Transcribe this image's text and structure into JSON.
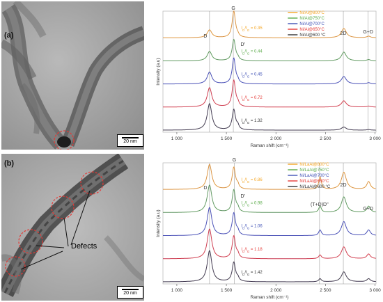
{
  "panels": {
    "a": {
      "letter": "(a)",
      "scale_label": "20 nm"
    },
    "b": {
      "letter": "(b)",
      "scale_label": "20 nm",
      "annotation": "Defects"
    }
  },
  "chart_data": [
    {
      "type": "line",
      "xlabel": "Raman shift (cm⁻¹)",
      "ylabel": "Intensity (a.u)",
      "xlim": [
        860,
        3010
      ],
      "xticks": [
        1000,
        1500,
        2000,
        2500,
        3000
      ],
      "xtick_labels": [
        "1 000",
        "1 500",
        "2 000",
        "2 500",
        "3 000"
      ],
      "peaks": [
        {
          "label": "D",
          "x": 1330
        },
        {
          "label": "G",
          "x": 1570
        },
        {
          "label": "D'",
          "x": 1610
        },
        {
          "label": "2D",
          "x": 2680
        },
        {
          "label": "G+D",
          "x": 2930
        }
      ],
      "vlines": [
        1330,
        1570,
        2680,
        2930
      ],
      "legend": [
        {
          "name": "Ni/Al@800°C",
          "color": "#f5a623"
        },
        {
          "name": "Ni/Al@750°C",
          "color": "#5bab4a"
        },
        {
          "name": "Ni/Al@700°C",
          "color": "#3f51b5"
        },
        {
          "name": "Ni/Al@650°C",
          "color": "#e53935"
        },
        {
          "name": "Ni/Al@600 °C",
          "color": "#333333"
        }
      ],
      "series": [
        {
          "color": "#f5a623",
          "ratio_label": "I_D/I_G = 0.35",
          "ratio": "0.35",
          "D": 0.25,
          "G": 0.85,
          "D2": 0.05,
          "twoD": 0.3,
          "GD": 0.05,
          "TD": 0
        },
        {
          "color": "#5bab4a",
          "ratio_label": "I_D/I_G = 0.44",
          "ratio": "0.44",
          "D": 0.3,
          "G": 0.68,
          "D2": 0.07,
          "twoD": 0.28,
          "GD": 0.04,
          "TD": 0
        },
        {
          "color": "#3f51b5",
          "ratio_label": "I_D/I_G = 0.45",
          "ratio": "0.45",
          "D": 0.38,
          "G": 0.82,
          "D2": 0.08,
          "twoD": 0.24,
          "GD": 0.04,
          "TD": 0
        },
        {
          "color": "#e53935",
          "ratio_label": "I_D/I_G = 0.72",
          "ratio": "0.72",
          "D": 0.62,
          "G": 0.85,
          "D2": 0.1,
          "twoD": 0.2,
          "GD": 0.03,
          "TD": 0
        },
        {
          "color": "#333333",
          "ratio_label": "I_D/I_G = 1.32",
          "ratio": "1.32",
          "D": 0.85,
          "G": 0.65,
          "D2": 0.12,
          "twoD": 0.1,
          "GD": 0.02,
          "TD": 0
        }
      ]
    },
    {
      "type": "line",
      "xlabel": "Raman shift (cm⁻¹)",
      "ylabel": "Intensity (a.u)",
      "xlim": [
        860,
        3010
      ],
      "xticks": [
        1000,
        1500,
        2000,
        2500,
        3000
      ],
      "xtick_labels": [
        "1 000",
        "1 500",
        "2 000",
        "2 500",
        "3 000"
      ],
      "peaks": [
        {
          "label": "D",
          "x": 1330
        },
        {
          "label": "G",
          "x": 1580
        },
        {
          "label": "D'",
          "x": 1610
        },
        {
          "label": "(T+D)D''",
          "x": 2440
        },
        {
          "label": "2D",
          "x": 2680
        },
        {
          "label": "G+D",
          "x": 2930
        }
      ],
      "vlines": [
        1330,
        1580,
        2440,
        2680
      ],
      "legend": [
        {
          "name": "Ni/LaAl@800°C",
          "color": "#f5a623"
        },
        {
          "name": "Ni/LaAl@750°C",
          "color": "#5bab4a"
        },
        {
          "name": "Ni/LaAl@700°C",
          "color": "#3f51b5"
        },
        {
          "name": "Ni/LaAl@650°C",
          "color": "#e53935"
        },
        {
          "name": "Ni/LaAl@600 °C",
          "color": "#333333"
        }
      ],
      "series": [
        {
          "color": "#f5a623",
          "ratio_label": "I_D/I_G = 0.86",
          "ratio": "0.86",
          "D": 0.8,
          "G": 0.7,
          "D2": 0.12,
          "twoD": 0.55,
          "GD": 0.25,
          "TD": 0.4
        },
        {
          "color": "#5bab4a",
          "ratio_label": "I_D/I_G = 0.98",
          "ratio": "0.98",
          "D": 0.88,
          "G": 0.72,
          "D2": 0.12,
          "twoD": 0.5,
          "GD": 0.2,
          "TD": 0.2
        },
        {
          "color": "#3f51b5",
          "ratio_label": "I_D/I_G = 1.06",
          "ratio": "1.06",
          "D": 0.9,
          "G": 0.72,
          "D2": 0.12,
          "twoD": 0.45,
          "GD": 0.18,
          "TD": 0.18
        },
        {
          "color": "#e53935",
          "ratio_label": "I_D/I_G = 1.18",
          "ratio": "1.18",
          "D": 0.95,
          "G": 0.72,
          "D2": 0.12,
          "twoD": 0.38,
          "GD": 0.15,
          "TD": 0.12
        },
        {
          "color": "#333333",
          "ratio_label": "I_D/I_G = 1.42",
          "ratio": "1.42",
          "D": 1.0,
          "G": 0.62,
          "D2": 0.1,
          "twoD": 0.32,
          "GD": 0.1,
          "TD": 0.1
        }
      ]
    }
  ]
}
